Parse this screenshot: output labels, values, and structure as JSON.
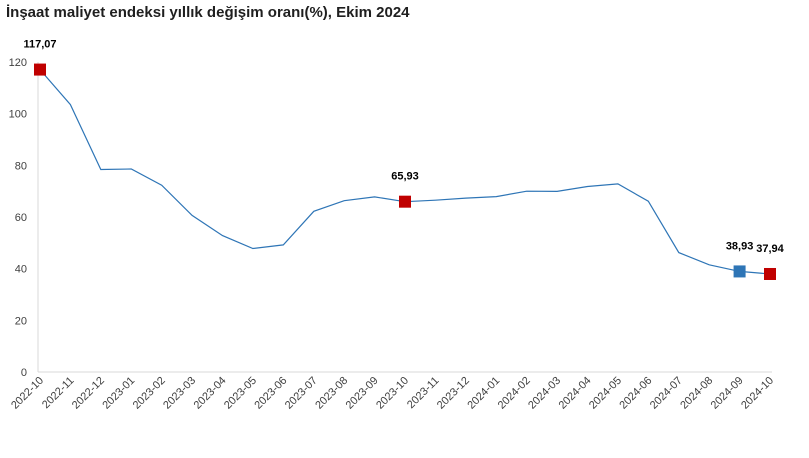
{
  "chart_data": {
    "type": "line",
    "title": "İnşaat maliyet endeksi yıllık değişim oranı(%), Ekim 2024",
    "xlabel": "",
    "ylabel": "",
    "ylim": [
      0,
      120
    ],
    "yticks": [
      0,
      20,
      40,
      60,
      80,
      100,
      120
    ],
    "grid": false,
    "legend": "none",
    "categories": [
      "2022-10",
      "2022-11",
      "2022-12",
      "2023-01",
      "2023-02",
      "2023-03",
      "2023-04",
      "2023-05",
      "2023-06",
      "2023-07",
      "2023-08",
      "2023-09",
      "2023-10",
      "2023-11",
      "2023-12",
      "2024-01",
      "2024-02",
      "2024-03",
      "2024-04",
      "2024-05",
      "2024-06",
      "2024-07",
      "2024-08",
      "2024-09",
      "2024-10"
    ],
    "series": [
      {
        "values": [
          117.07,
          103.5,
          78.4,
          78.6,
          72.3,
          60.6,
          52.8,
          47.8,
          49.2,
          62.2,
          66.3,
          67.8,
          65.93,
          66.5,
          67.3,
          67.9,
          70.0,
          69.9,
          71.8,
          72.8,
          66.1,
          46.2,
          41.5,
          38.93,
          37.94
        ],
        "color": "#2e75b6"
      }
    ],
    "highlighted_points": [
      {
        "index": 0,
        "label": "117,07",
        "color": "#c00000"
      },
      {
        "index": 12,
        "label": "65,93",
        "color": "#c00000"
      },
      {
        "index": 23,
        "label": "38,93",
        "color": "#2e75b6"
      },
      {
        "index": 24,
        "label": "37,94",
        "color": "#c00000"
      }
    ]
  }
}
